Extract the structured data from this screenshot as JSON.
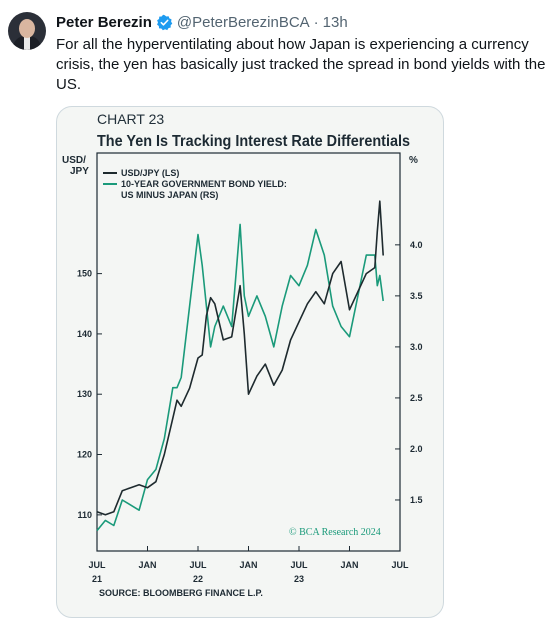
{
  "tweet": {
    "author_name": "Peter Berezin",
    "handle": "@PeterBerezinBCA",
    "separator": "·",
    "timestamp": "13h",
    "text": "For all the hyperventilating about how Japan is experiencing a currency crisis, the yen has basically just tracked the spread in bond yields with the\nUS."
  },
  "colors": {
    "usdjpy": "#1e2a2e",
    "yield_spread": "#1a9a7a",
    "verified": "#1d9bf0"
  },
  "chart_data": {
    "type": "line",
    "chart_label": "CHART 23",
    "title": "The Yen Is Tracking Interest Rate Differentials",
    "left_axis_label": [
      "USD/",
      "JPY"
    ],
    "right_axis_label": "%",
    "left_axis": {
      "min": 104,
      "max": 170,
      "ticks": [
        110,
        120,
        130,
        140,
        150
      ]
    },
    "right_axis": {
      "min": 1.0,
      "max": 4.9,
      "ticks": [
        1.5,
        2.0,
        2.5,
        3.0,
        3.5,
        4.0
      ],
      "tick_labels": [
        "1.5",
        "2.0",
        "2.5",
        "3.0",
        "3.5",
        "4.0"
      ]
    },
    "x_axis": {
      "ticks": [
        {
          "month": 0,
          "label": "JUL",
          "year": "21"
        },
        {
          "month": 6,
          "label": "JAN",
          "year": ""
        },
        {
          "month": 12,
          "label": "JUL",
          "year": "22"
        },
        {
          "month": 18,
          "label": "JAN",
          "year": ""
        },
        {
          "month": 24,
          "label": "JUL",
          "year": "23"
        },
        {
          "month": 30,
          "label": "JAN",
          "year": ""
        },
        {
          "month": 36,
          "label": "JUL",
          "year": ""
        }
      ],
      "range": [
        0,
        36
      ]
    },
    "legend": {
      "placement": "top-left",
      "entries": [
        "USD/JPY (LS)",
        "10-YEAR GOVERNMENT BOND YIELD:",
        "US MINUS JAPAN (RS)"
      ]
    },
    "source": "SOURCE: BLOOMBERG FINANCE L.P.",
    "copyright": "© BCA Research 2024",
    "series": [
      {
        "name": "USD/JPY (LS)",
        "axis": "left",
        "x": [
          0,
          1,
          2,
          3,
          4,
          5,
          6,
          7,
          8,
          9,
          9.5,
          10,
          11,
          12,
          12.5,
          13,
          13.5,
          14,
          15,
          16,
          17,
          17.5,
          18,
          19,
          20,
          21,
          22,
          23,
          24,
          25,
          26,
          27,
          28,
          29,
          30,
          31,
          32,
          33,
          33.3,
          33.6,
          34
        ],
        "values": [
          110.5,
          110,
          110.5,
          114,
          114.5,
          115,
          114.5,
          115.5,
          120,
          126,
          129,
          128,
          131,
          136,
          136.5,
          143,
          146,
          145,
          139,
          139.5,
          148,
          140,
          130,
          133,
          135,
          131.5,
          134,
          139,
          142,
          145,
          147,
          145,
          150,
          152,
          144,
          147,
          150,
          151,
          157,
          162,
          153
        ]
      },
      {
        "name": "10-YEAR GOVERNMENT BOND YIELD: US MINUS JAPAN (RS)",
        "axis": "right",
        "x": [
          0,
          1,
          2,
          3,
          4,
          5,
          6,
          7,
          8,
          9,
          9.5,
          10,
          11,
          12,
          12.5,
          13,
          13.5,
          14,
          15,
          16,
          17,
          17.5,
          18,
          19,
          20,
          21,
          22,
          23,
          24,
          25,
          26,
          27,
          28,
          29,
          30,
          31,
          32,
          33,
          33.3,
          33.6,
          34
        ],
        "values": [
          1.2,
          1.3,
          1.25,
          1.5,
          1.45,
          1.4,
          1.7,
          1.8,
          2.1,
          2.6,
          2.6,
          2.7,
          3.4,
          4.1,
          3.8,
          3.4,
          3.0,
          3.2,
          3.4,
          3.2,
          4.2,
          3.5,
          3.3,
          3.5,
          3.3,
          3.0,
          3.4,
          3.7,
          3.6,
          3.8,
          4.15,
          3.9,
          3.4,
          3.2,
          3.1,
          3.5,
          3.9,
          3.9,
          3.6,
          3.7,
          3.45
        ]
      }
    ]
  }
}
